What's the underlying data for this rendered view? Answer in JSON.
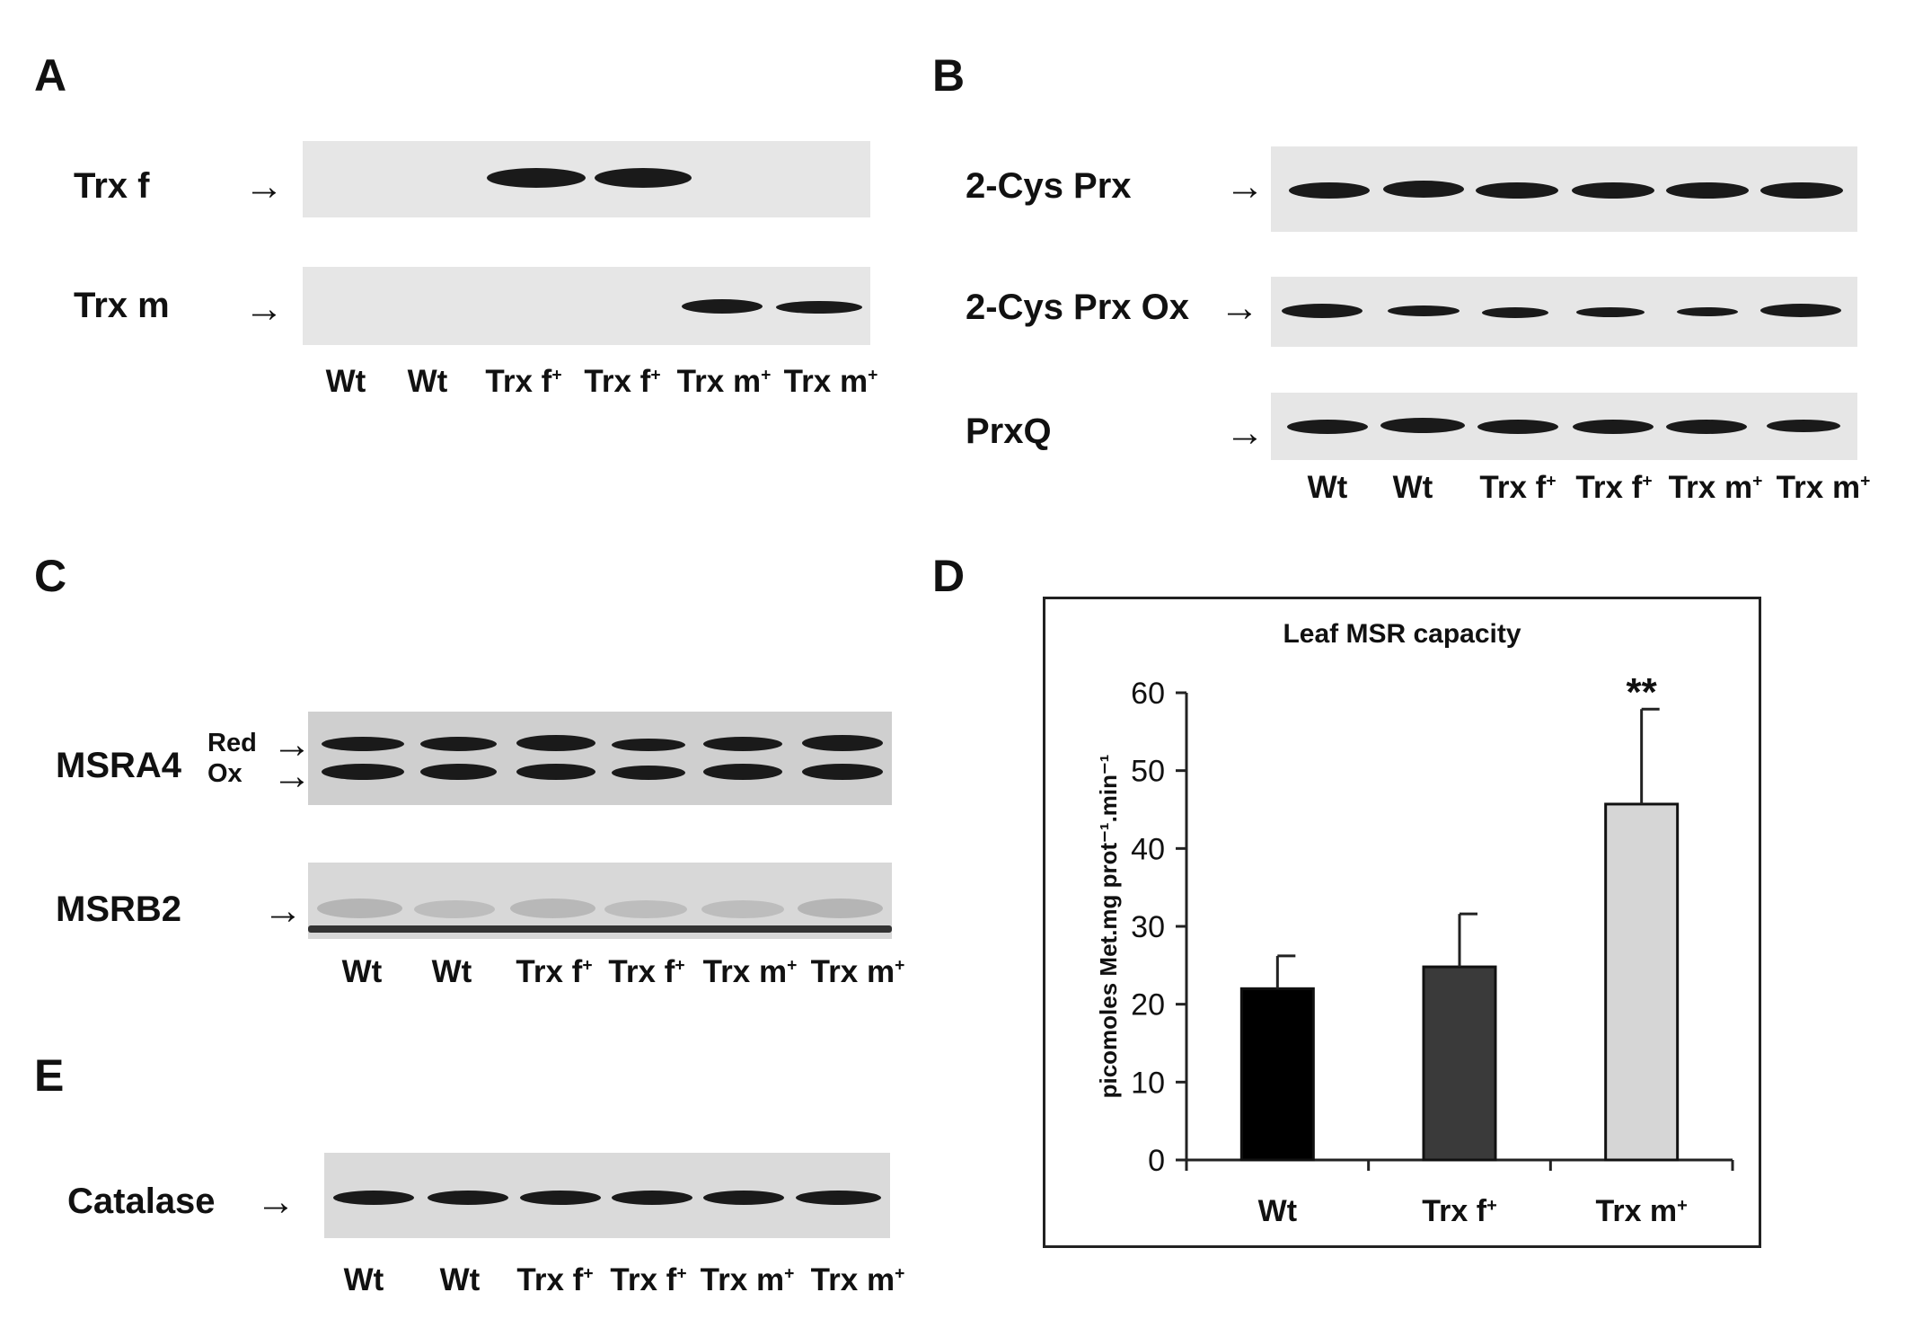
{
  "panels": {
    "a": {
      "letter": "A",
      "rows": [
        {
          "label": "Trx f",
          "arrow": "→"
        },
        {
          "label": "Trx m",
          "arrow": "→"
        }
      ],
      "lanes": [
        "Wt",
        "Wt",
        "Trx f",
        "Trx f",
        "Trx m",
        "Trx m"
      ],
      "sup": "+"
    },
    "b": {
      "letter": "B",
      "rows": [
        {
          "label": "2-Cys Prx",
          "arrow": "→"
        },
        {
          "label": "2-Cys Prx Ox",
          "arrow": "→"
        },
        {
          "label": "PrxQ",
          "arrow": "→"
        }
      ],
      "lanes": [
        "Wt",
        "Wt",
        "Trx f",
        "Trx f",
        "Trx m",
        "Trx m"
      ],
      "sup": "+"
    },
    "c": {
      "letter": "C",
      "rows": [
        {
          "label": "MSRA4",
          "red": "Red",
          "ox": "Ox",
          "arrow": "→"
        },
        {
          "label": "MSRB2",
          "arrow": "→"
        }
      ],
      "lanes": [
        "Wt",
        "Wt",
        "Trx f",
        "Trx f",
        "Trx m",
        "Trx m"
      ],
      "sup": "+"
    },
    "d": {
      "letter": "D"
    },
    "e": {
      "letter": "E",
      "rows": [
        {
          "label": "Catalase",
          "arrow": "→"
        }
      ],
      "lanes": [
        "Wt",
        "Wt",
        "Trx f",
        "Trx f",
        "Trx m",
        "Trx m"
      ],
      "sup": "+"
    }
  },
  "chart_data": {
    "type": "bar",
    "title": "Leaf MSR capacity",
    "ylabel": "picomoles Met.mg prot⁻¹.min⁻¹",
    "xlabel": "",
    "categories": [
      "Wt",
      "Trx f",
      "Trx m"
    ],
    "category_sup": [
      "",
      "+",
      "+"
    ],
    "values": [
      22,
      24.8,
      45.7
    ],
    "errors": [
      4.2,
      6.8,
      12.2
    ],
    "annotations": [
      "",
      "",
      "**"
    ],
    "ylim": [
      0,
      60
    ],
    "yticks": [
      0,
      10,
      20,
      30,
      40,
      50,
      60
    ],
    "colors": [
      "#000000",
      "#3a3a3a",
      "#d6d6d6"
    ],
    "grid": false
  }
}
